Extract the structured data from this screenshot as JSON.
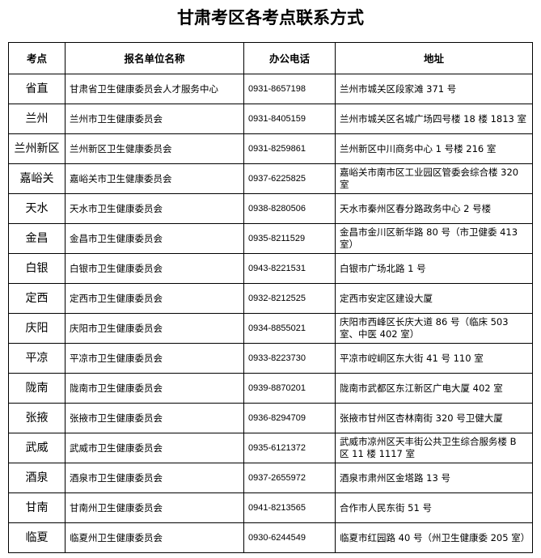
{
  "title": "甘肃考区各考点联系方式",
  "table": {
    "header": [
      "考点",
      "报名单位名称",
      "办公电话",
      "地址"
    ],
    "rows": [
      [
        "省直",
        "甘肃省卫生健康委员会人才服务中心",
        "0931-8657198",
        "兰州市城关区段家滩 371 号"
      ],
      [
        "兰州",
        "兰州市卫生健康委员会",
        "0931-8405159",
        "兰州市城关区名城广场四号楼 18 楼 1813 室"
      ],
      [
        "兰州新区",
        "兰州新区卫生健康委员会",
        "0931-8259861",
        "兰州新区中川商务中心 1 号楼 216 室"
      ],
      [
        "嘉峪关",
        "嘉峪关市卫生健康委员会",
        "0937-6225825",
        "嘉峪关市南市区工业园区管委会综合楼 320 室"
      ],
      [
        "天水",
        "天水市卫生健康委员会",
        "0938-8280506",
        "天水市秦州区春分路政务中心 2 号楼"
      ],
      [
        "金昌",
        "金昌市卫生健康委员会",
        "0935-8211529",
        "金昌市金川区新华路 80 号（市卫健委 413 室）"
      ],
      [
        "白银",
        "白银市卫生健康委员会",
        "0943-8221531",
        "白银市广场北路 1 号"
      ],
      [
        "定西",
        "定西市卫生健康委员会",
        "0932-8212525",
        "定西市安定区建设大厦"
      ],
      [
        "庆阳",
        "庆阳市卫生健康委员会",
        "0934-8855021",
        "庆阳市西峰区长庆大道 86 号（临床 503 室、中医 402 室）"
      ],
      [
        "平凉",
        "平凉市卫生健康委员会",
        "0933-8223730",
        "平凉市崆峒区东大街 41 号 110 室"
      ],
      [
        "陇南",
        "陇南市卫生健康委员会",
        "0939-8870201",
        "陇南市武都区东江新区广电大厦 402 室"
      ],
      [
        "张掖",
        "张掖市卫生健康委员会",
        "0936-8294709",
        "张掖市甘州区杏林南街 320 号卫健大厦"
      ],
      [
        "武威",
        "武威市卫生健康委员会",
        "0935-6121372",
        "武威市凉州区天丰街公共卫生综合服务楼 B 区 11 楼 1117 室"
      ],
      [
        "酒泉",
        "酒泉市卫生健康委员会",
        "0937-2655972",
        "酒泉市肃州区金塔路 13 号"
      ],
      [
        "甘南",
        "甘南州卫生健康委员会",
        "0941-8213565",
        "合作市人民东街 51 号"
      ],
      [
        "临夏",
        "临夏州卫生健康委员会",
        "0930-6244549",
        "临夏市红园路 40 号（州卫生健康委 205 室）"
      ]
    ]
  }
}
